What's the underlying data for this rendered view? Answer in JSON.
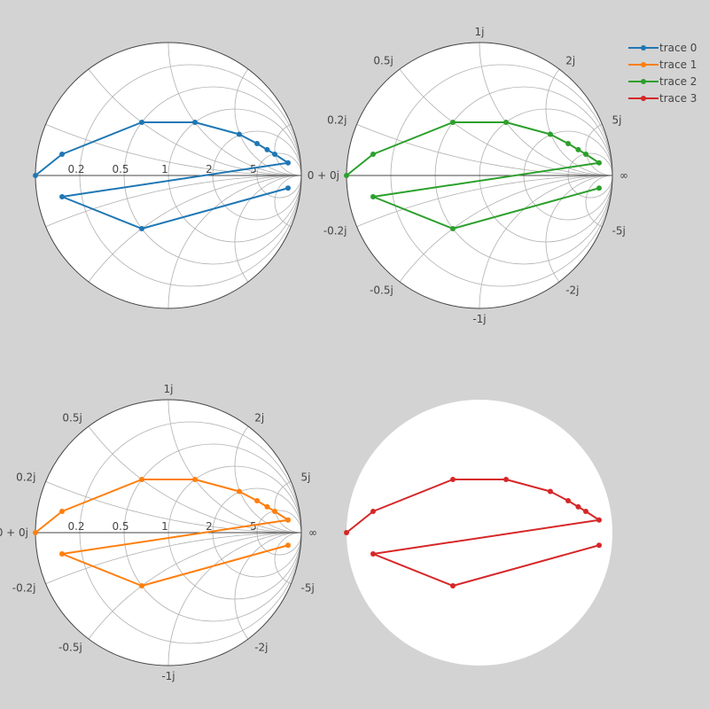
{
  "chart_data": {
    "type": "smith",
    "real_tick_labels": [
      "0.2",
      "0.5",
      "1",
      "2",
      "5"
    ],
    "imag_tick_labels": {
      "positive": [
        "0.2j",
        "0.5j",
        "1j",
        "2j",
        "5j"
      ],
      "negative": [
        "-0.2j",
        "-0.5j",
        "-1j",
        "-2j",
        "-5j"
      ],
      "origin": "0 + 0j",
      "infinity": "∞"
    },
    "legend": {
      "placement": "top-right",
      "items": [
        {
          "name": "trace 0",
          "color": "#1f77b4"
        },
        {
          "name": "trace 1",
          "color": "#ff7f0e"
        },
        {
          "name": "trace 2",
          "color": "#2ca02c"
        },
        {
          "name": "trace 3",
          "color": "#d62728"
        }
      ]
    },
    "traces": [
      {
        "name": "trace 0",
        "color": "#1f77b4",
        "subplot": "top-left",
        "gamma": [
          [
            -1,
            0
          ],
          [
            -0.8,
            0.16
          ],
          [
            -0.2,
            0.4
          ],
          [
            0.2,
            0.4
          ],
          [
            0.533,
            0.31
          ],
          [
            0.667,
            0.24
          ],
          [
            0.743,
            0.194
          ],
          [
            0.8,
            0.16
          ],
          [
            0.9,
            0.095
          ],
          [
            -0.8,
            -0.16
          ],
          [
            -0.2,
            -0.4
          ],
          [
            0.9,
            -0.095
          ]
        ],
        "show_real_ticks": true,
        "show_imag_ticks": false
      },
      {
        "name": "trace 1",
        "color": "#ff7f0e",
        "subplot": "bottom-left",
        "gamma": [
          [
            -1,
            0
          ],
          [
            -0.8,
            0.16
          ],
          [
            -0.2,
            0.4
          ],
          [
            0.2,
            0.4
          ],
          [
            0.533,
            0.31
          ],
          [
            0.667,
            0.24
          ],
          [
            0.743,
            0.194
          ],
          [
            0.8,
            0.16
          ],
          [
            0.9,
            0.095
          ],
          [
            -0.8,
            -0.16
          ],
          [
            -0.2,
            -0.4
          ],
          [
            0.9,
            -0.095
          ]
        ],
        "show_real_ticks": true,
        "show_imag_ticks": true
      },
      {
        "name": "trace 2",
        "color": "#2ca02c",
        "subplot": "top-right",
        "gamma": [
          [
            -1,
            0
          ],
          [
            -0.8,
            0.16
          ],
          [
            -0.2,
            0.4
          ],
          [
            0.2,
            0.4
          ],
          [
            0.533,
            0.31
          ],
          [
            0.667,
            0.24
          ],
          [
            0.743,
            0.194
          ],
          [
            0.8,
            0.16
          ],
          [
            0.9,
            0.095
          ],
          [
            -0.8,
            -0.16
          ],
          [
            -0.2,
            -0.4
          ],
          [
            0.9,
            -0.095
          ]
        ],
        "show_real_ticks": false,
        "show_imag_ticks": true
      },
      {
        "name": "trace 3",
        "color": "#d62728",
        "subplot": "bottom-right",
        "gamma": [
          [
            -1,
            0
          ],
          [
            -0.8,
            0.16
          ],
          [
            -0.2,
            0.4
          ],
          [
            0.2,
            0.4
          ],
          [
            0.533,
            0.31
          ],
          [
            0.667,
            0.24
          ],
          [
            0.743,
            0.194
          ],
          [
            0.8,
            0.16
          ],
          [
            0.9,
            0.095
          ],
          [
            -0.8,
            -0.16
          ],
          [
            -0.2,
            -0.4
          ],
          [
            0.9,
            -0.095
          ]
        ],
        "show_real_ticks": false,
        "show_imag_ticks": false,
        "grid": false
      }
    ]
  }
}
